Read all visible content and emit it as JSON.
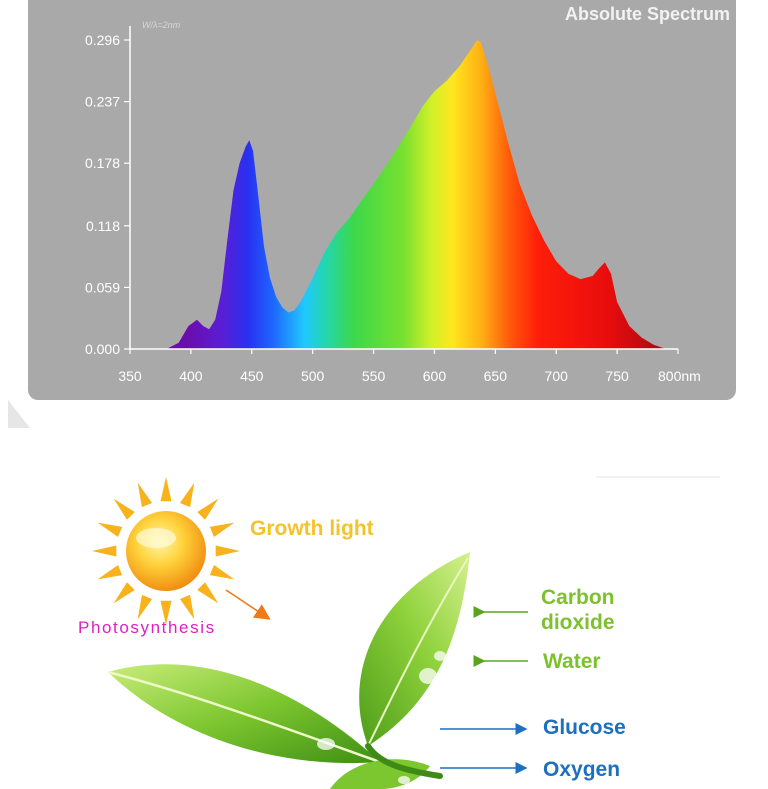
{
  "chart_data": {
    "type": "area",
    "title": "Absolute Spectrum",
    "bin_note": "W/λ=2nm",
    "x_unit": "nm",
    "xlim": [
      350,
      800
    ],
    "ylim": [
      0,
      0.296
    ],
    "x_ticks": [
      350,
      400,
      450,
      500,
      550,
      600,
      650,
      700,
      750,
      800
    ],
    "x_tick_labels": [
      "350",
      "400",
      "450",
      "500",
      "550",
      "600",
      "650",
      "700",
      "750",
      "800nm"
    ],
    "y_ticks": [
      0,
      0.059,
      0.118,
      0.178,
      0.237,
      0.296
    ],
    "y_tick_labels": [
      "0.000",
      "0.059",
      "0.118",
      "0.178",
      "0.237",
      "0.296"
    ],
    "grid": false,
    "series": [
      {
        "x": [
          380,
          390,
          398,
          405,
          410,
          415,
          420,
          425,
          430,
          435,
          440,
          445,
          448,
          451,
          455,
          460,
          465,
          470,
          475,
          480,
          485,
          490,
          500,
          510,
          520,
          530,
          540,
          550,
          560,
          570,
          580,
          590,
          600,
          610,
          620,
          630,
          635,
          638,
          645,
          650,
          660,
          670,
          680,
          690,
          700,
          710,
          720,
          730,
          735,
          740,
          745,
          750,
          760,
          770,
          780,
          790
        ],
        "y": [
          0.0,
          0.006,
          0.022,
          0.028,
          0.022,
          0.019,
          0.028,
          0.055,
          0.105,
          0.152,
          0.178,
          0.194,
          0.2,
          0.19,
          0.15,
          0.098,
          0.068,
          0.05,
          0.04,
          0.035,
          0.037,
          0.045,
          0.068,
          0.093,
          0.112,
          0.125,
          0.142,
          0.158,
          0.175,
          0.193,
          0.212,
          0.232,
          0.247,
          0.257,
          0.27,
          0.287,
          0.296,
          0.294,
          0.268,
          0.245,
          0.2,
          0.158,
          0.128,
          0.104,
          0.084,
          0.072,
          0.067,
          0.07,
          0.077,
          0.083,
          0.072,
          0.045,
          0.022,
          0.011,
          0.004,
          0.0
        ]
      }
    ]
  },
  "diagram": {
    "labels": {
      "growth_light": "Growth light",
      "photosynthesis": "Photosynthesis",
      "carbon_dioxide_line1": "Carbon",
      "carbon_dioxide_line2": "dioxide",
      "water": "Water",
      "glucose": "Glucose",
      "oxygen": "Oxygen"
    },
    "colors": {
      "green_label": "#7dc22e",
      "blue_label": "#1d6fbf",
      "sun_label": "#f0c020",
      "photosynthesis": "#e020c0",
      "sun": "#f5a623",
      "leaf": "#6fbf2a"
    }
  }
}
